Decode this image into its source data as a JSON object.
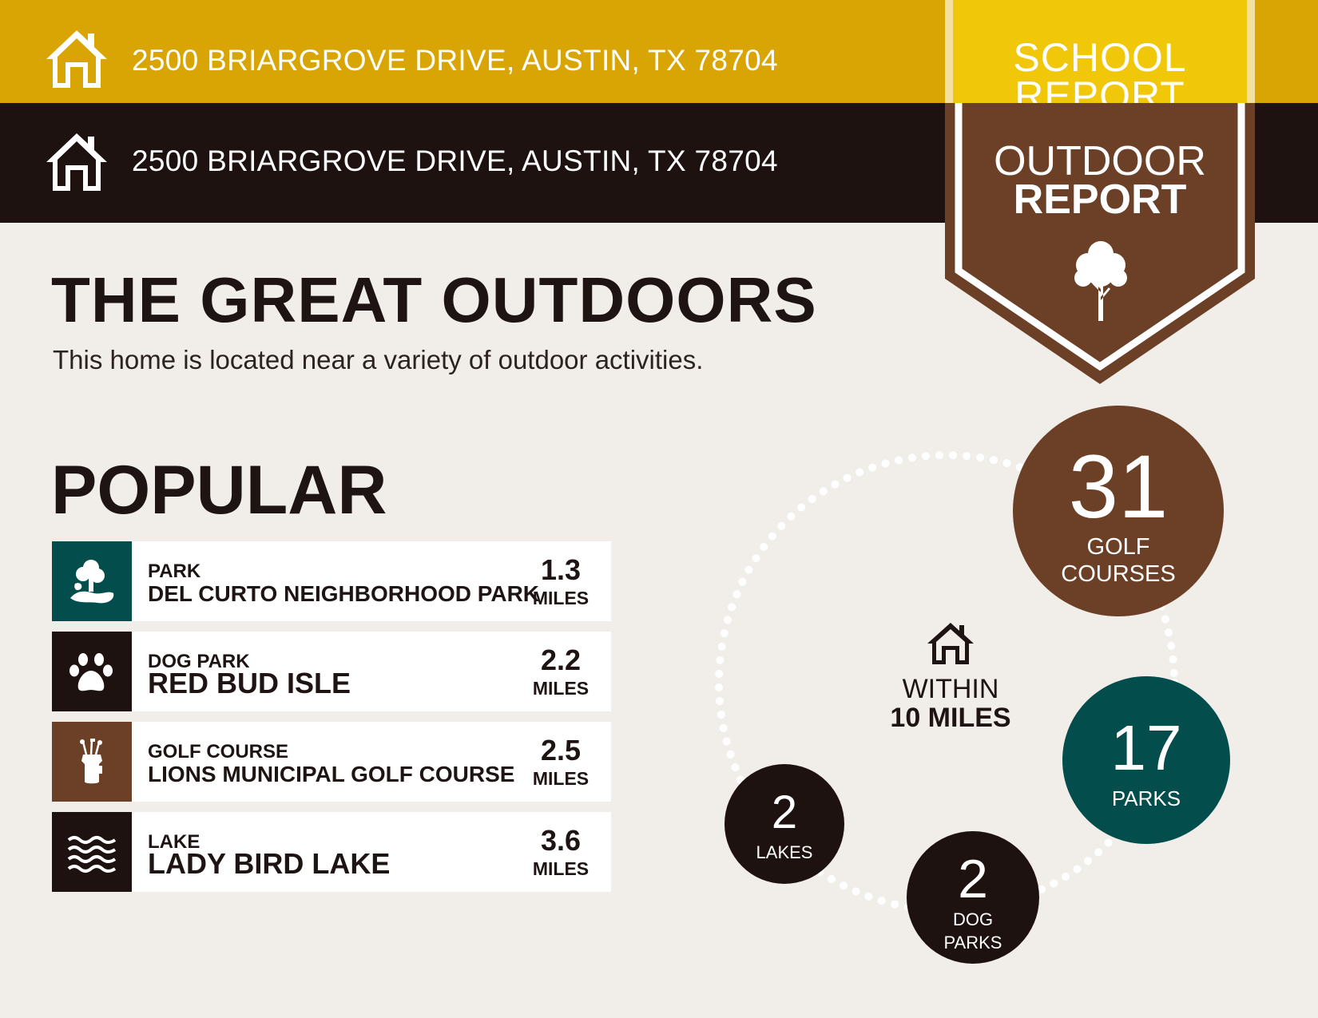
{
  "header": {
    "school_bar": {
      "address": "2500 BRIARGROVE DRIVE, AUSTIN, TX 78704",
      "icon": "house-icon",
      "color": "#d8a505"
    },
    "outdoor_bar": {
      "address": "2500 BRIARGROVE DRIVE, AUSTIN, TX 78704",
      "icon": "house-icon",
      "color": "#1d1210"
    }
  },
  "banners": {
    "school": {
      "text": "SCHOOL REPORT",
      "color": "#f1c70a"
    },
    "outdoor": {
      "line1": "OUTDOOR",
      "line2": "REPORT",
      "icon": "tree-icon",
      "color": "#6c3f27"
    }
  },
  "main": {
    "title": "THE GREAT OUTDOORS",
    "subtitle": "This home is located near a variety of outdoor activities."
  },
  "popular": {
    "title": "POPULAR",
    "items": [
      {
        "category": "PARK",
        "name": "DEL CURTO NEIGHBORHOOD PARK",
        "distance": "1.3",
        "unit": "MILES",
        "icon": "park-icon",
        "color": "#034e4c"
      },
      {
        "category": "DOG PARK",
        "name": "RED BUD ISLE",
        "distance": "2.2",
        "unit": "MILES",
        "icon": "paw-icon",
        "color": "#1d1210"
      },
      {
        "category": "GOLF COURSE",
        "name": "LIONS MUNICIPAL GOLF COURSE",
        "distance": "2.5",
        "unit": "MILES",
        "icon": "golf-bag-icon",
        "color": "#6c3f27"
      },
      {
        "category": "LAKE",
        "name": "LADY BIRD LAKE",
        "distance": "3.6",
        "unit": "MILES",
        "icon": "waves-icon",
        "color": "#1d1210"
      }
    ]
  },
  "stats": {
    "within": {
      "line1": "WITHIN",
      "line2": "10 MILES",
      "icon": "house-icon"
    },
    "golf": {
      "count": "31",
      "label_line1": "GOLF",
      "label_line2": "COURSES",
      "color": "#6c3f27"
    },
    "parks": {
      "count": "17",
      "label": "PARKS",
      "color": "#034e4c"
    },
    "lakes": {
      "count": "2",
      "label": "LAKES",
      "color": "#1d1210"
    },
    "dog_parks": {
      "count": "2",
      "label_line1": "DOG",
      "label_line2": "PARKS",
      "color": "#1d1210"
    }
  }
}
